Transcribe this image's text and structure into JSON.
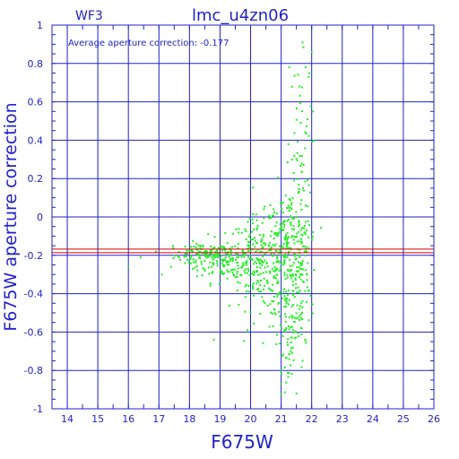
{
  "chart_data": {
    "type": "scatter",
    "title": "lmc_u4zn06",
    "panel_label": "WF3",
    "annotation": "Average aperture correction: -0.177",
    "xlabel": "F675W",
    "ylabel": "F675W aperture correction",
    "xlim": [
      13.5,
      26
    ],
    "ylim": [
      -1,
      1
    ],
    "xticks": [
      "14",
      "15",
      "16",
      "17",
      "18",
      "19",
      "20",
      "21",
      "22",
      "23",
      "24",
      "25",
      "26"
    ],
    "yticks": [
      "-1",
      "-0.8",
      "-0.6",
      "-0.4",
      "-0.2",
      "0",
      "0.2",
      "0.4",
      "0.6",
      "0.8",
      "1"
    ],
    "grid": true,
    "average_line": {
      "y": -0.177,
      "color": "#cc0000"
    },
    "colors": {
      "axis": "#2222cc",
      "grid": "#2222cc",
      "points": "#22ee22",
      "average": "#cc0000"
    },
    "clusters": [
      {
        "x_center": 18.4,
        "x_spread": 0.45,
        "y_center": -0.2,
        "y_spread": 0.03,
        "count": 90
      },
      {
        "x_center": 19.2,
        "x_spread": 0.5,
        "y_center": -0.22,
        "y_spread": 0.06,
        "count": 130
      },
      {
        "x_center": 20.3,
        "x_spread": 0.5,
        "y_center": -0.24,
        "y_spread": 0.12,
        "count": 220
      },
      {
        "x_center": 21.2,
        "x_spread": 0.35,
        "y_center": -0.2,
        "y_spread": 0.18,
        "count": 200
      },
      {
        "x_center": 21.6,
        "x_spread": 0.2,
        "y_center": -0.3,
        "y_spread": 0.25,
        "count": 110
      },
      {
        "x_center": 21.6,
        "x_spread": 0.2,
        "y_center": 0.3,
        "y_spread": 0.25,
        "count": 60
      },
      {
        "x_center": 21.1,
        "x_spread": 0.2,
        "y_center": -0.55,
        "y_spread": 0.12,
        "count": 40
      },
      {
        "x_center": 21.2,
        "x_spread": 0.15,
        "y_center": -0.8,
        "y_spread": 0.08,
        "count": 15
      }
    ],
    "outliers": [
      {
        "x": 16.0,
        "y": -0.26
      },
      {
        "x": 16.4,
        "y": -0.21
      },
      {
        "x": 16.9,
        "y": -0.18
      },
      {
        "x": 17.1,
        "y": -0.3
      },
      {
        "x": 17.4,
        "y": -0.26
      },
      {
        "x": 21.7,
        "y": 0.91
      },
      {
        "x": 21.8,
        "y": 0.78
      },
      {
        "x": 21.9,
        "y": 0.73
      },
      {
        "x": 21.6,
        "y": 0.68
      },
      {
        "x": 22.0,
        "y": 0.86
      },
      {
        "x": 21.5,
        "y": -0.92
      },
      {
        "x": 18.8,
        "y": -0.64
      },
      {
        "x": 19.9,
        "y": -0.59
      },
      {
        "x": 21.0,
        "y": -0.87
      },
      {
        "x": 21.7,
        "y": -0.75
      }
    ]
  }
}
